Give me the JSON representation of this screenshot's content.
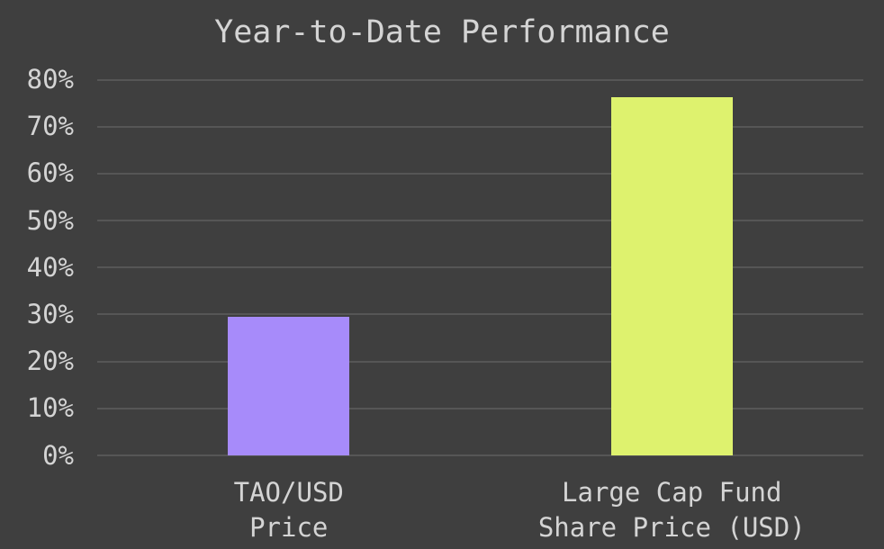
{
  "chart_data": {
    "type": "bar",
    "title": "Year-to-Date Performance",
    "categories": [
      {
        "lines": [
          "TAO/USD",
          "Price"
        ]
      },
      {
        "lines": [
          "Large Cap Fund",
          "Share Price (USD)"
        ]
      }
    ],
    "values": [
      29.5,
      76.2
    ],
    "value_unit": "%",
    "series_colors": [
      "#a78bfa",
      "#def26e"
    ],
    "ytick_values": [
      0,
      10,
      20,
      30,
      40,
      50,
      60,
      70,
      80
    ],
    "ytick_labels": [
      "0%",
      "10%",
      "20%",
      "30%",
      "40%",
      "50%",
      "60%",
      "70%",
      "80%"
    ],
    "ylim": [
      0,
      85
    ],
    "xlabel": "",
    "ylabel": "",
    "grid": true,
    "legend": false,
    "colors": {
      "background": "#3f3f3f",
      "text": "#d4d4d4",
      "gridline": "#565656"
    }
  }
}
